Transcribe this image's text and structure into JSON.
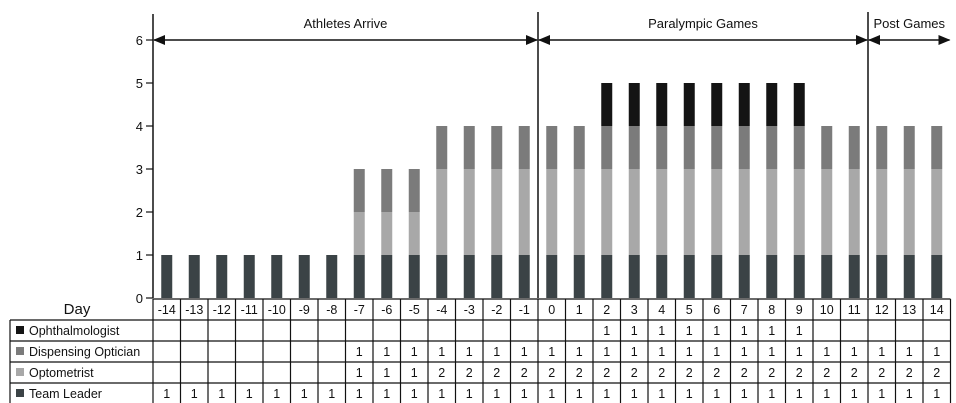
{
  "chart_data": {
    "type": "bar",
    "stacked": true,
    "ylim": [
      0,
      6
    ],
    "yticks": [
      0,
      1,
      2,
      3,
      4,
      5,
      6
    ],
    "categories": [
      "-14",
      "-13",
      "-12",
      "-11",
      "-10",
      "-9",
      "-8",
      "-7",
      "-6",
      "-5",
      "-4",
      "-3",
      "-2",
      "-1",
      "0",
      "1",
      "2",
      "3",
      "4",
      "5",
      "6",
      "7",
      "8",
      "9",
      "10",
      "11",
      "12",
      "13",
      "14"
    ],
    "series": [
      {
        "name": "Team Leader",
        "color": "#3b4346",
        "values": [
          1,
          1,
          1,
          1,
          1,
          1,
          1,
          1,
          1,
          1,
          1,
          1,
          1,
          1,
          1,
          1,
          1,
          1,
          1,
          1,
          1,
          1,
          1,
          1,
          1,
          1,
          1,
          1,
          1
        ]
      },
      {
        "name": "Optometrist",
        "color": "#a8a8a8",
        "values": [
          null,
          null,
          null,
          null,
          null,
          null,
          null,
          1,
          1,
          1,
          2,
          2,
          2,
          2,
          2,
          2,
          2,
          2,
          2,
          2,
          2,
          2,
          2,
          2,
          2,
          2,
          2,
          2,
          2
        ]
      },
      {
        "name": "Dispensing Optician",
        "color": "#7b7b7b",
        "values": [
          null,
          null,
          null,
          null,
          null,
          null,
          null,
          1,
          1,
          1,
          1,
          1,
          1,
          1,
          1,
          1,
          1,
          1,
          1,
          1,
          1,
          1,
          1,
          1,
          1,
          1,
          1,
          1,
          1
        ]
      },
      {
        "name": "Ophthalmologist",
        "color": "#141414",
        "values": [
          null,
          null,
          null,
          null,
          null,
          null,
          null,
          null,
          null,
          null,
          null,
          null,
          null,
          null,
          null,
          null,
          1,
          1,
          1,
          1,
          1,
          1,
          1,
          1,
          null,
          null,
          null,
          null,
          null
        ]
      }
    ],
    "table_row_order": [
      "Ophthalmologist",
      "Dispensing Optician",
      "Optometrist",
      "Team Leader"
    ],
    "day_label": "Day",
    "phases": [
      {
        "label": "Athletes Arrive",
        "from": "-14",
        "to": "-1"
      },
      {
        "label": "Paralympic Games",
        "from": "0",
        "to": "11"
      },
      {
        "label": "Post Games",
        "from": "12",
        "to": "14"
      }
    ]
  }
}
